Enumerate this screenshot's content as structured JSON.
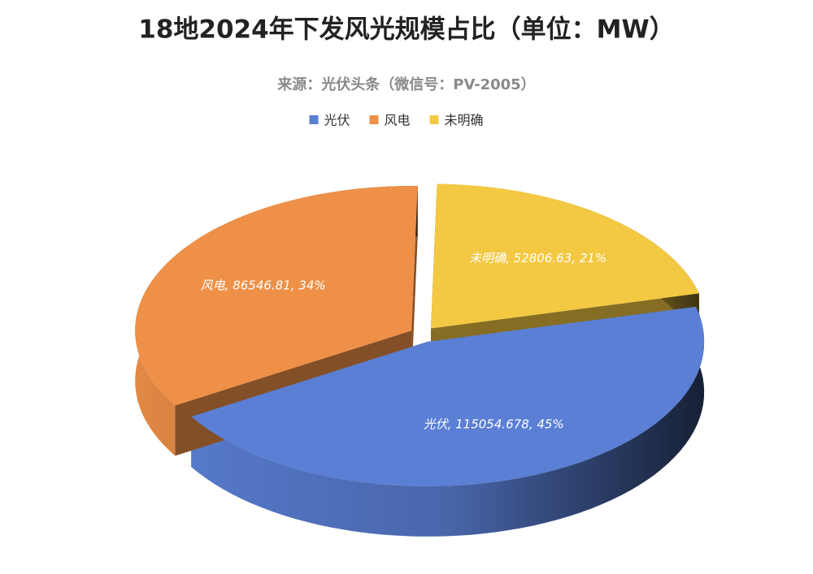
{
  "chart_data": {
    "type": "pie3d",
    "title": "18地2024年下发风光规模占比（单位：MW）",
    "subtitle": "来源：光伏头条（微信号：PV-2005）",
    "categories": [
      "光伏",
      "风电",
      "未明确"
    ],
    "values": [
      115054.678,
      86546.81,
      52806.63
    ],
    "value_labels": [
      "光伏, 115054.678, 45%",
      "风电, 86546.81, 34%",
      "未明确, 52806.63, 21%"
    ],
    "colors": [
      "#5a7fd4",
      "#ee9048",
      "#f3c843"
    ],
    "legend": "top"
  }
}
